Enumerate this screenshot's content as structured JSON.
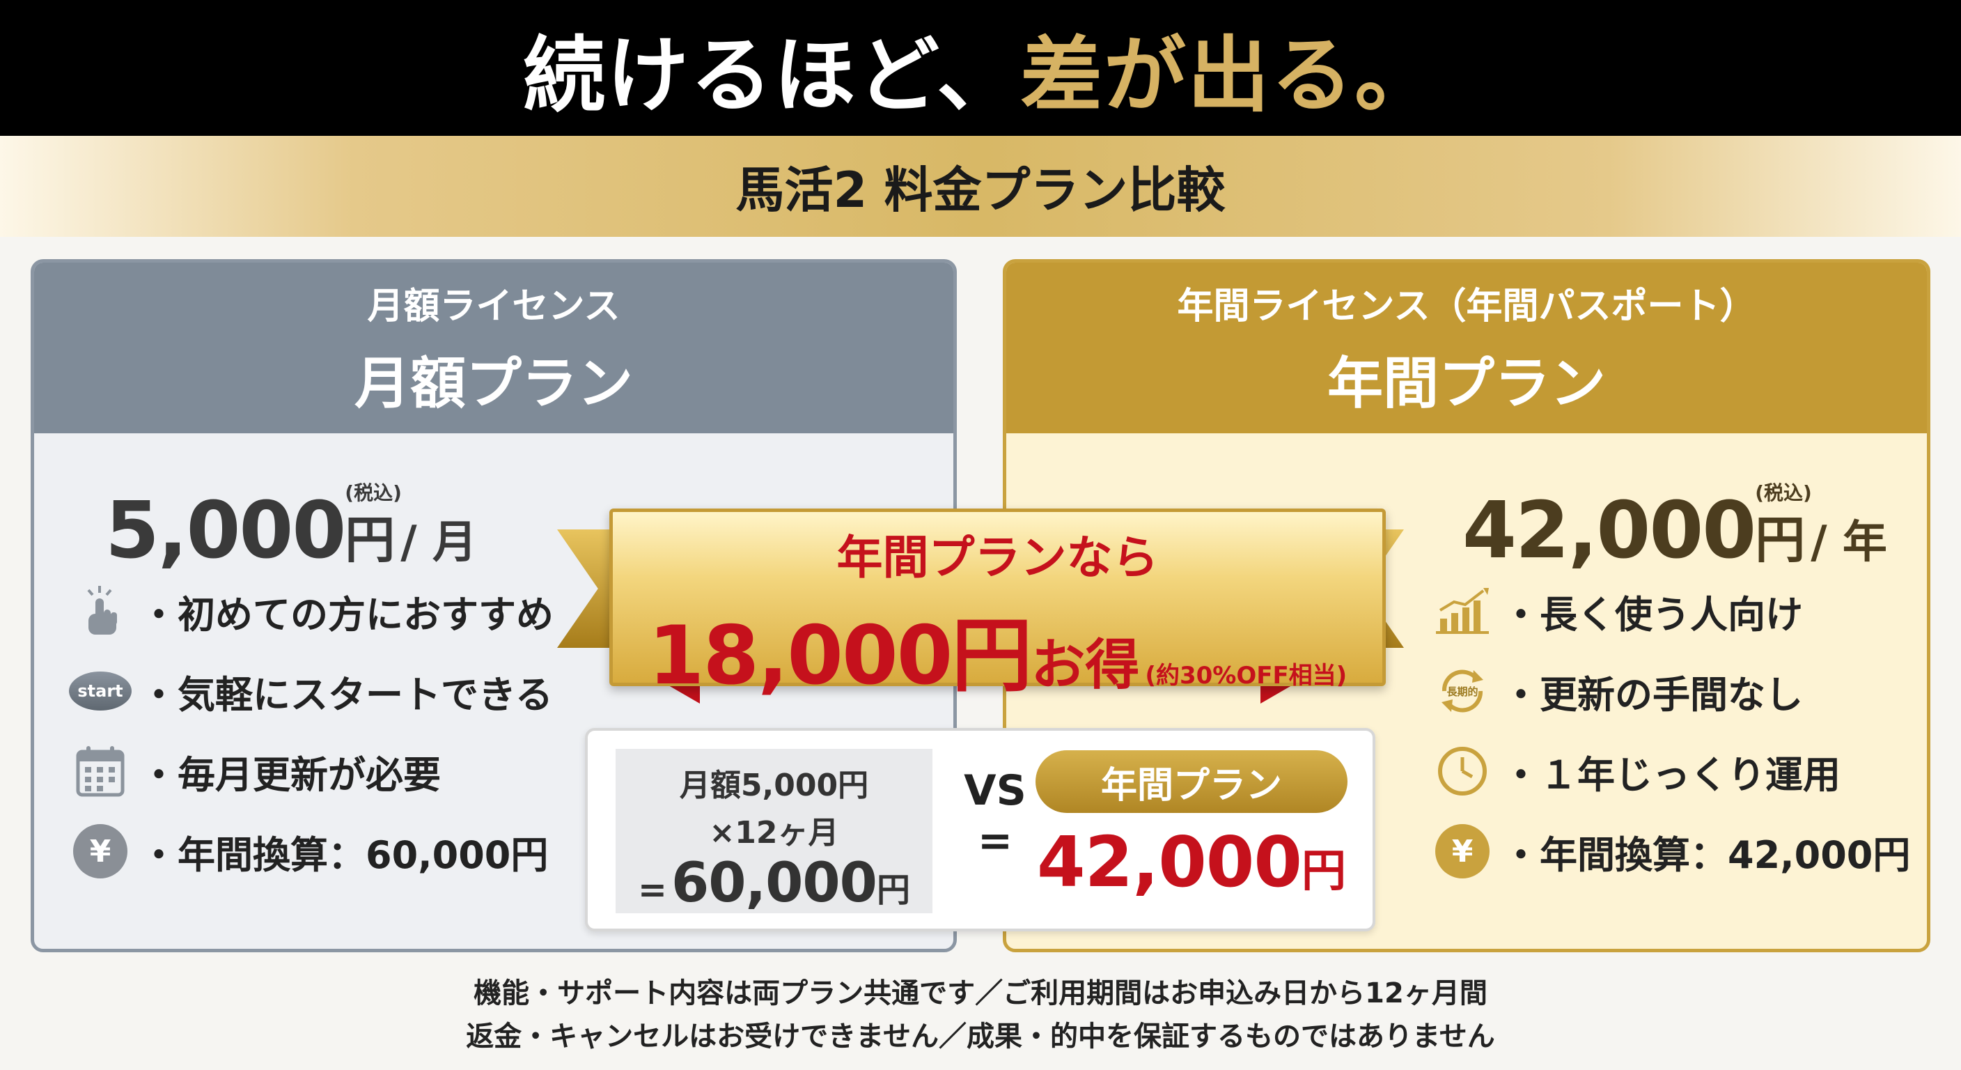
{
  "header": {
    "headline_white": "続けるほど、",
    "headline_gold": "差が出る。",
    "subtitle": "馬活2 料金プラン比較"
  },
  "monthly": {
    "kicker": "月額ライセンス",
    "title": "月額プラン",
    "price": "5,000",
    "yen": "円",
    "tax": "(税込)",
    "unit": "/ 月",
    "features": [
      {
        "icon": "pointing-hand-icon",
        "text": "・初めての方におすすめ"
      },
      {
        "icon": "start-button-icon",
        "icon_text": "start",
        "text": "・気軽にスタートできる"
      },
      {
        "icon": "calendar-icon",
        "text": "・毎月更新が必要"
      },
      {
        "icon": "yen-coin-icon",
        "icon_text": "¥",
        "text": "・年間換算：60,000円"
      }
    ]
  },
  "annual": {
    "kicker": "年間ライセンス（年間パスポート）",
    "title": "年間プラン",
    "price": "42,000",
    "yen": "円",
    "tax": "(税込)",
    "unit": "/ 年",
    "features": [
      {
        "icon": "growth-chart-icon",
        "text": "・長く使う人向け"
      },
      {
        "icon": "renewal-cycle-icon",
        "icon_text": "長期的",
        "text": "・更新の手間なし"
      },
      {
        "icon": "clock-icon",
        "text": "・１年じっくり運用"
      },
      {
        "icon": "yen-coin-icon",
        "icon_text": "¥",
        "text": "・年間換算：42,000円"
      }
    ]
  },
  "banner": {
    "top": "年間プランなら",
    "amount": "18,000円",
    "otoku": "お得",
    "note": "(約30%OFF相当)"
  },
  "comparison": {
    "left_line1": "月額5,000円",
    "left_line2": "×12ヶ月",
    "left_eq": "=",
    "left_total": "60,000",
    "left_unit": "円",
    "vs": "VS",
    "eq": "=",
    "pill": "年間プラン",
    "right_total": "42,000",
    "right_unit": "円"
  },
  "footer": {
    "line1": "機能・サポート内容は両プラン共通です／ご利用期間はお申込み日から12ヶ月間",
    "line2": "返金・キャンセルはお受けできません／成果・的中を保証するものではありません"
  },
  "colors": {
    "gold": "#c39a34",
    "slate": "#7f8b98",
    "red": "#c5111c",
    "black": "#000000"
  }
}
